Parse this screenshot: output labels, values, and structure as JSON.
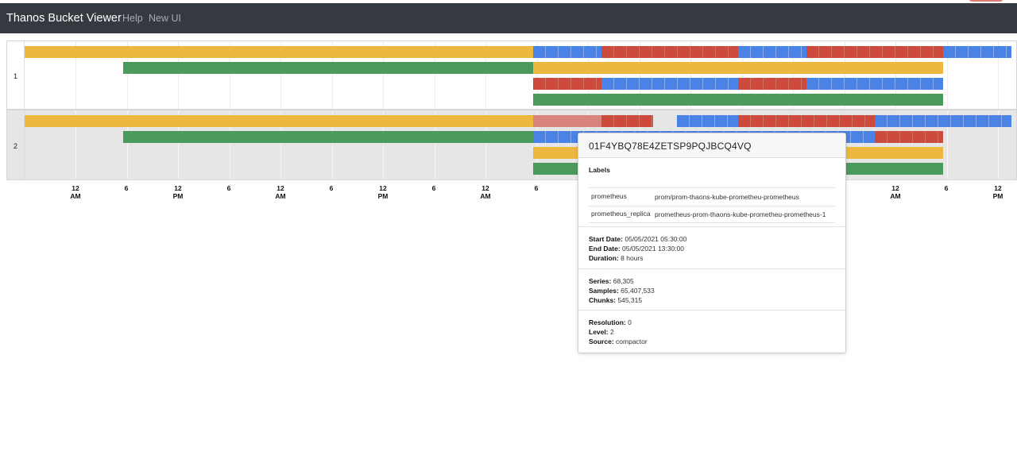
{
  "navbar": {
    "brand": "Thanos Bucket Viewer",
    "links": [
      "Help",
      "New UI"
    ]
  },
  "rows": [
    {
      "label": "1"
    },
    {
      "label": "2"
    }
  ],
  "legend_colors": {
    "yellow": "#ecb83f",
    "green": "#4b9a5c",
    "blue": "#4a82e6",
    "red": "#cc4b3c",
    "navbar": "#343a40"
  },
  "axis_ticks": [
    {
      "top": "12",
      "bottom": "AM"
    },
    {
      "top": "6",
      "bottom": ""
    },
    {
      "top": "12",
      "bottom": "PM"
    },
    {
      "top": "6",
      "bottom": ""
    },
    {
      "top": "12",
      "bottom": "AM"
    },
    {
      "top": "6",
      "bottom": ""
    },
    {
      "top": "12",
      "bottom": "PM"
    },
    {
      "top": "6",
      "bottom": ""
    },
    {
      "top": "12",
      "bottom": "AM"
    },
    {
      "top": "6",
      "bottom": ""
    },
    {
      "top": "12",
      "bottom": "AM"
    },
    {
      "top": "6",
      "bottom": ""
    },
    {
      "top": "12",
      "bottom": "PM"
    }
  ],
  "tooltip": {
    "block_id": "01F4YBQ78E4ZETSP9PQJBCQ4VQ",
    "labels_title": "Labels",
    "labels": [
      {
        "key": "prometheus",
        "value": "prom/prom-thaons-kube-prometheu-prometheus"
      },
      {
        "key": "prometheus_replica",
        "value": "prometheus-prom-thaons-kube-prometheu-prometheus-1"
      }
    ],
    "start_date_label": "Start Date:",
    "start_date": "05/05/2021 05:30:00",
    "end_date_label": "End Date:",
    "end_date": "05/05/2021 13:30:00",
    "duration_label": "Duration:",
    "duration": "8 hours",
    "series_label": "Series:",
    "series": "68,305",
    "samples_label": "Samples:",
    "samples": "65,407,533",
    "chunks_label": "Chunks:",
    "chunks": "545,315",
    "resolution_label": "Resolution:",
    "resolution": "0",
    "level_label": "Level:",
    "level": "2",
    "source_label": "Source:",
    "source": "compactor"
  }
}
